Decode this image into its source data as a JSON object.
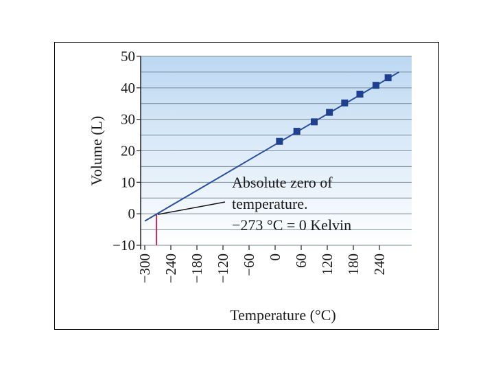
{
  "chart_data": {
    "type": "line",
    "xlabel": "Temperature (°C)",
    "ylabel": "Volume (L)",
    "xlim": [
      -300,
      280
    ],
    "ylim": [
      -10,
      50
    ],
    "x_ticks": [
      -300,
      -240,
      -180,
      -120,
      -60,
      0,
      60,
      120,
      180,
      240
    ],
    "x_tick_labels": [
      "−300",
      "−240",
      "−180",
      "−120",
      "−60",
      "0",
      "60",
      "120",
      "180",
      "240"
    ],
    "y_ticks": [
      -10,
      0,
      10,
      20,
      30,
      40,
      50
    ],
    "y_tick_labels": [
      "−10",
      "0",
      "10",
      "20",
      "30",
      "40",
      "50"
    ],
    "grid": true,
    "series": [
      {
        "values_x": [
          10,
          50,
          90,
          125,
          160,
          195,
          232,
          260
        ],
        "values_y": [
          23,
          26.2,
          29.2,
          32.2,
          35.2,
          38,
          40.8,
          43.2
        ],
        "marker": "square",
        "color": "#1f3f8f"
      }
    ],
    "fit_line": {
      "x": [
        -300,
        285
      ],
      "y": [
        -2.3,
        45
      ],
      "color": "#2a4ea0"
    },
    "absolute_zero": {
      "x": -273,
      "color": "#c0285a"
    },
    "annotation": {
      "lines": [
        "Absolute zero of",
        "temperature.",
        "−273 °C = 0 Kelvin"
      ],
      "points_to_x": -273,
      "points_to_y": 0
    },
    "colors": {
      "plot_top": "#bcd8f2",
      "plot_bottom": "#ffffff",
      "grid": "#7a8a99",
      "line": "#2a4ea0",
      "marker": "#1f3f8f"
    }
  }
}
